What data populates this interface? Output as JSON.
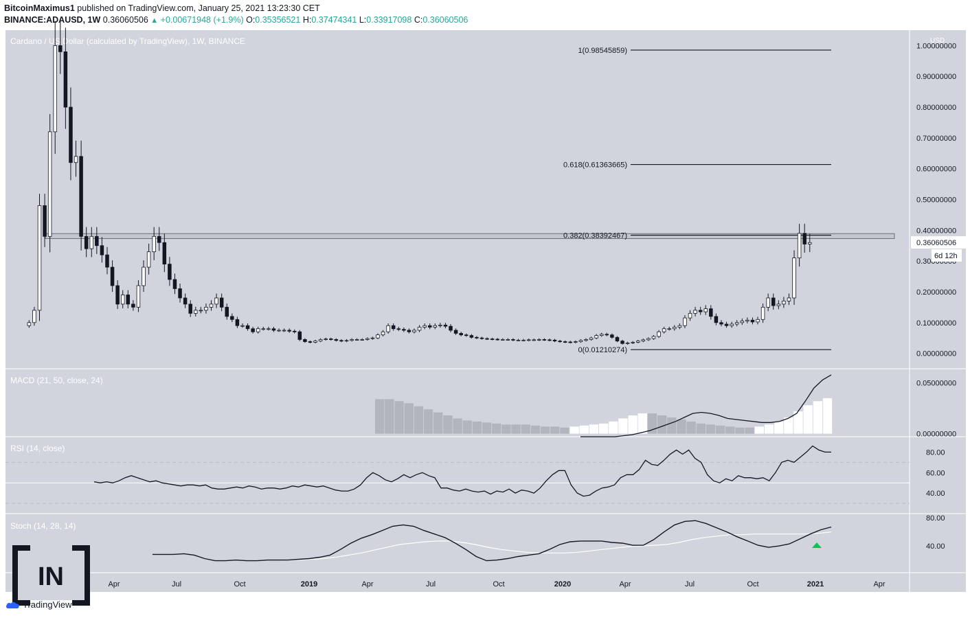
{
  "header": {
    "author": "BitcoinMaximus1",
    "published_text": "published on TradingView.com, January 25, 2021 13:23:30 CET",
    "symbol": "BINANCE:ADAUSD, 1W",
    "price": "0.36060506",
    "change": "+0.00671948 (+1.9%)",
    "o_label": "O:",
    "o_value": "0.35356521",
    "h_label": "H:",
    "h_value": "0.37474341",
    "l_label": "L:",
    "l_value": "0.33917098",
    "c_label": "C:",
    "c_value": "0.36060506"
  },
  "chart_data": [
    {
      "type": "candlestick",
      "title": "Cardano / US Dollar (calculated by TradingView), 1W, BINANCE",
      "currency_label": "USD",
      "ylim": [
        -0.05,
        1.05
      ],
      "y_ticks": [
        "0.00000000",
        "0.10000000",
        "0.20000000",
        "0.30000000",
        "0.40000000",
        "0.50000000",
        "0.60000000",
        "0.70000000",
        "0.80000000",
        "0.90000000",
        "1.00000000"
      ],
      "x_tick_labels": [
        "Apr",
        "Jul",
        "Oct",
        "2019",
        "Apr",
        "Jul",
        "Oct",
        "2020",
        "Apr",
        "Jul",
        "Oct",
        "2021",
        "Apr"
      ],
      "current_price": "0.36060506",
      "countdown": "6d 12h",
      "fib_levels": [
        {
          "label": "1(0.98545859)",
          "value": 0.98545859
        },
        {
          "label": "0.618(0.61363665)",
          "value": 0.61363665
        },
        {
          "label": "0.382(0.38392467)",
          "value": 0.38392467
        },
        {
          "label": "0(0.01210274)",
          "value": 0.01210274
        }
      ],
      "resistance_zone": [
        0.373,
        0.389
      ],
      "close_series": [
        0.1,
        0.14,
        0.48,
        0.38,
        0.72,
        1.0,
        0.98,
        0.8,
        0.62,
        0.64,
        0.38,
        0.34,
        0.38,
        0.35,
        0.32,
        0.28,
        0.22,
        0.16,
        0.19,
        0.16,
        0.15,
        0.22,
        0.28,
        0.33,
        0.38,
        0.36,
        0.29,
        0.24,
        0.21,
        0.18,
        0.16,
        0.13,
        0.14,
        0.14,
        0.15,
        0.16,
        0.18,
        0.15,
        0.12,
        0.11,
        0.09,
        0.09,
        0.08,
        0.07,
        0.08,
        0.08,
        0.08,
        0.075,
        0.075,
        0.075,
        0.072,
        0.07,
        0.045,
        0.038,
        0.036,
        0.04,
        0.045,
        0.047,
        0.045,
        0.042,
        0.04,
        0.042,
        0.045,
        0.045,
        0.045,
        0.048,
        0.05,
        0.06,
        0.07,
        0.09,
        0.08,
        0.078,
        0.075,
        0.07,
        0.075,
        0.085,
        0.09,
        0.085,
        0.09,
        0.092,
        0.088,
        0.075,
        0.065,
        0.06,
        0.058,
        0.052,
        0.05,
        0.048,
        0.047,
        0.046,
        0.045,
        0.045,
        0.045,
        0.043,
        0.043,
        0.043,
        0.044,
        0.044,
        0.045,
        0.044,
        0.043,
        0.04,
        0.038,
        0.037,
        0.036,
        0.038,
        0.042,
        0.045,
        0.05,
        0.058,
        0.062,
        0.06,
        0.052,
        0.04,
        0.032,
        0.034,
        0.036,
        0.04,
        0.044,
        0.048,
        0.055,
        0.07,
        0.08,
        0.08,
        0.085,
        0.09,
        0.115,
        0.13,
        0.14,
        0.135,
        0.145,
        0.12,
        0.1,
        0.095,
        0.09,
        0.095,
        0.1,
        0.105,
        0.108,
        0.102,
        0.11,
        0.15,
        0.18,
        0.155,
        0.16,
        0.17,
        0.18,
        0.31,
        0.39,
        0.355,
        0.36
      ],
      "panels": [
        {
          "name": "MACD (21, 50, close, 24)",
          "ylim": [
            -0.003,
            0.064
          ],
          "y_ticks": [
            "0.00000000",
            "0.05000000"
          ],
          "macd_line": [
            -0.004,
            -0.003,
            -0.003,
            -0.003,
            -0.003,
            -0.002,
            -0.001,
            0.001,
            0.003,
            0.006,
            0.009,
            0.012,
            0.016,
            0.02,
            0.021,
            0.02,
            0.018,
            0.015,
            0.014,
            0.013,
            0.012,
            0.011,
            0.011,
            0.012,
            0.015,
            0.02,
            0.032,
            0.045,
            0.053,
            0.058
          ],
          "histogram": [
            0.034,
            0.034,
            0.032,
            0.03,
            0.027,
            0.024,
            0.021,
            0.018,
            0.015,
            0.013,
            0.012,
            0.011,
            0.01,
            0.009,
            0.009,
            0.009,
            0.008,
            0.007,
            0.007,
            0.006,
            0.007,
            0.008,
            0.009,
            0.01,
            0.012,
            0.015,
            0.018,
            0.02,
            0.02,
            0.018,
            0.016,
            0.014,
            0.012,
            0.01,
            0.009,
            0.008,
            0.007,
            0.006,
            0.006,
            0.007,
            0.009,
            0.012,
            0.016,
            0.022,
            0.028,
            0.032,
            0.035
          ]
        },
        {
          "name": "RSI (14, close)",
          "ylim": [
            20,
            95
          ],
          "y_ticks": [
            "40.00",
            "60.00",
            "80.00"
          ],
          "bands": [
            30,
            50,
            70
          ],
          "values": [
            51,
            50,
            51,
            50,
            52,
            55,
            57,
            55,
            53,
            51,
            52,
            50,
            49,
            48,
            47,
            48,
            48,
            47,
            48,
            45,
            44,
            44,
            45,
            46,
            45,
            47,
            46,
            44,
            45,
            45,
            44,
            45,
            47,
            46,
            48,
            47,
            46,
            47,
            45,
            43,
            42,
            42,
            44,
            48,
            55,
            60,
            57,
            53,
            51,
            54,
            58,
            55,
            58,
            60,
            57,
            55,
            45,
            45,
            43,
            42,
            44,
            42,
            41,
            42,
            39,
            42,
            41,
            44,
            40,
            43,
            42,
            40,
            45,
            52,
            58,
            62,
            62,
            48,
            40,
            37,
            38,
            42,
            45,
            46,
            48,
            55,
            58,
            58,
            63,
            72,
            68,
            67,
            72,
            78,
            82,
            78,
            82,
            74,
            70,
            58,
            52,
            50,
            54,
            52,
            57,
            55,
            55,
            54,
            55,
            52,
            60,
            70,
            72,
            70,
            75,
            80,
            86,
            82,
            80,
            80
          ]
        },
        {
          "name": "Stoch (14, 28, 14)",
          "ylim": [
            2,
            86
          ],
          "y_ticks": [
            "40.00",
            "80.00"
          ],
          "k_line": [
            28,
            28,
            28,
            29,
            27,
            22,
            19,
            19,
            20,
            19,
            19,
            20,
            20,
            20,
            21,
            22,
            24,
            27,
            35,
            44,
            51,
            56,
            62,
            68,
            70,
            68,
            62,
            57,
            52,
            44,
            35,
            25,
            19,
            20,
            22,
            25,
            27,
            29,
            35,
            42,
            46,
            47,
            47,
            47,
            45,
            44,
            41,
            41,
            49,
            60,
            70,
            75,
            76,
            72,
            66,
            60,
            53,
            47,
            41,
            38,
            40,
            43,
            50,
            57,
            63,
            67
          ],
          "d_line": [
            20,
            20,
            21,
            22,
            24,
            27,
            30,
            34,
            38,
            42,
            44,
            46,
            47,
            47,
            45,
            42,
            38,
            35,
            33,
            31,
            30,
            30,
            30,
            31,
            33,
            35,
            37,
            39,
            40,
            41,
            42,
            45,
            49,
            52,
            54,
            56,
            56,
            57,
            57,
            57,
            57,
            57,
            58,
            60
          ]
        }
      ],
      "signal_marker": "up-arrow"
    }
  ],
  "branding": {
    "logo_text": "IN",
    "tradingview": "TradingView"
  },
  "colors": {
    "bg": "#d1d4dc",
    "ink": "#131722",
    "hist": "#b2b5be",
    "accent_green": "#26a69a",
    "signal": "#00c853"
  }
}
